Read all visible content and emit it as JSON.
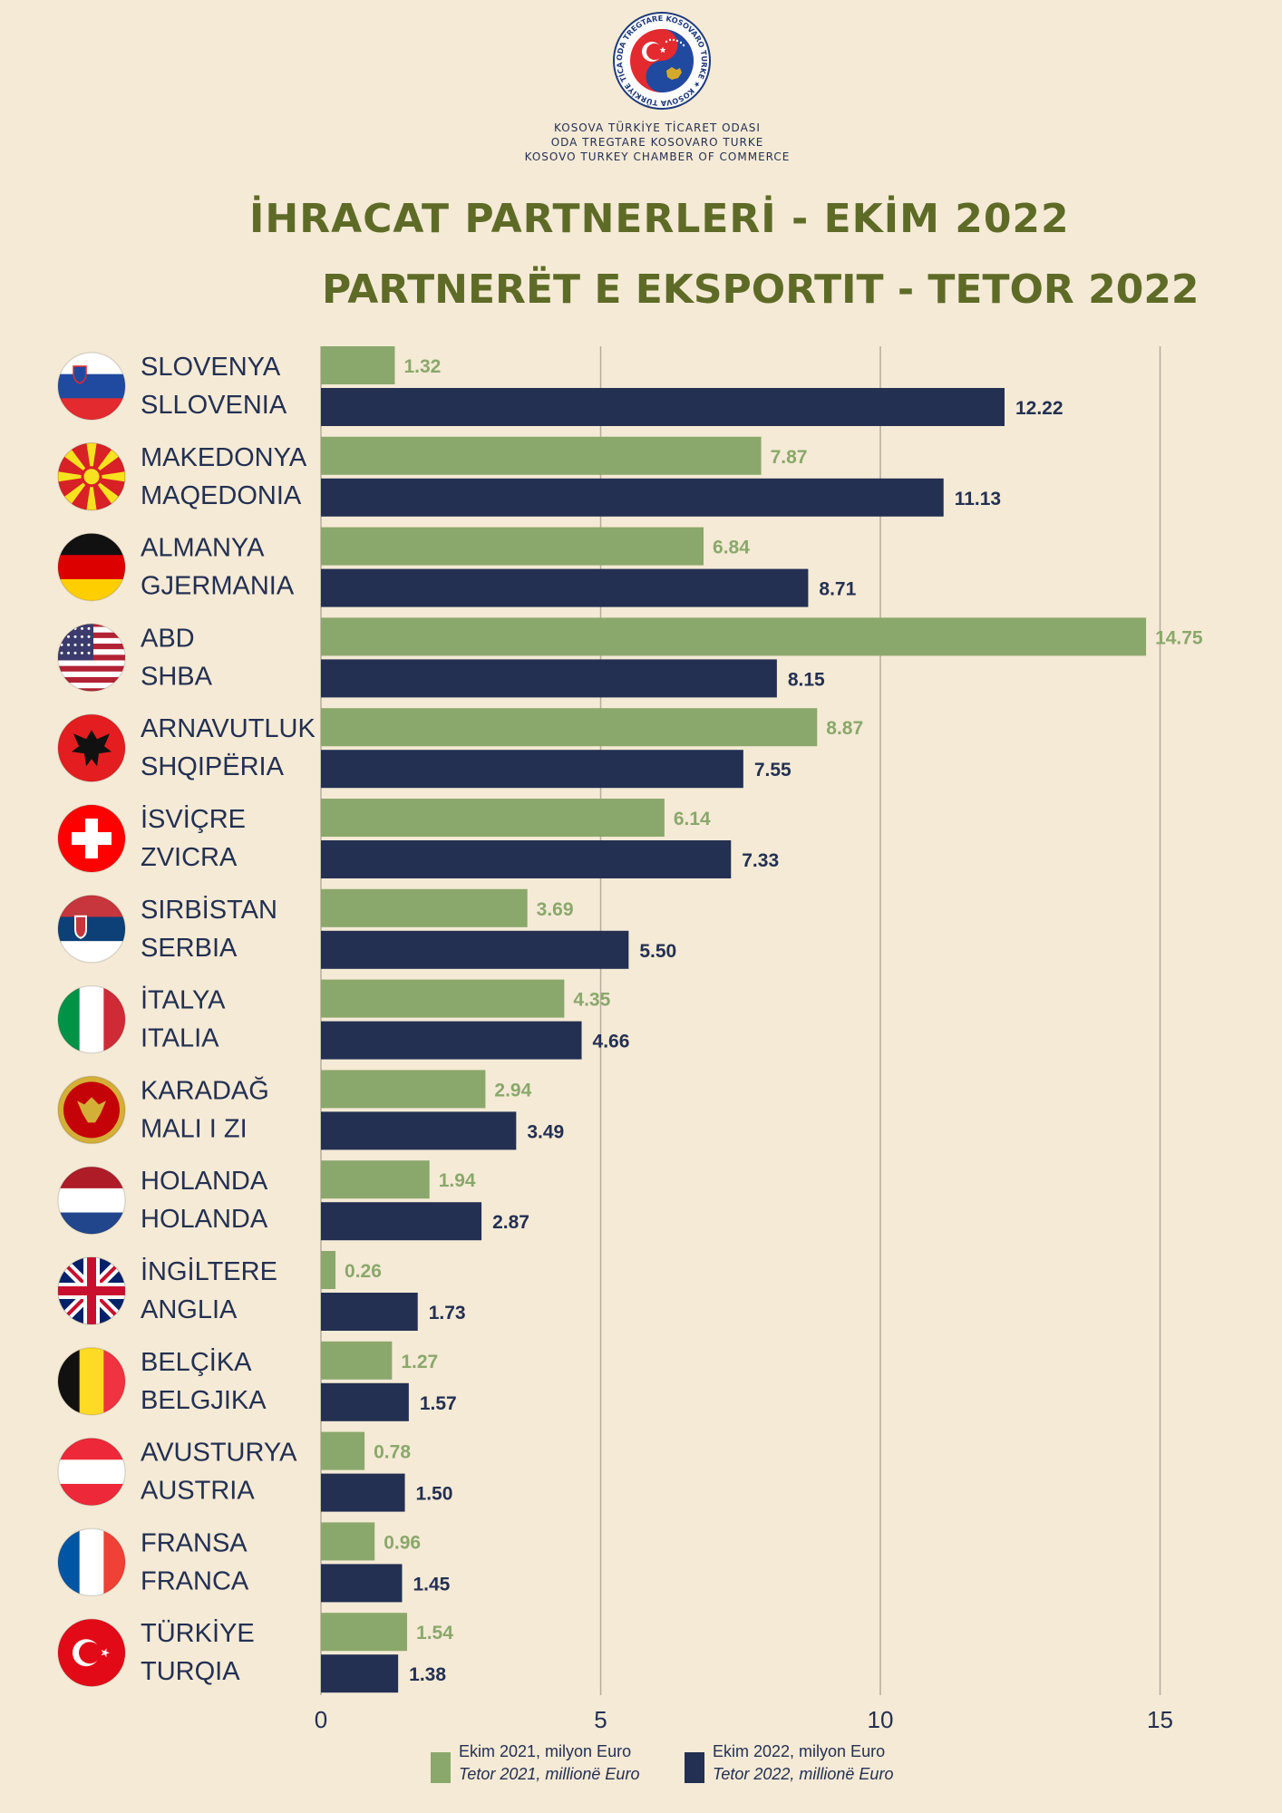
{
  "header": {
    "org_lines": [
      "KOSOVA TÜRKİYE TİCARET ODASI",
      "ODA TREGTARE KOSOVARO TURKE",
      "KOSOVO TURKEY CHAMBER OF COMMERCE"
    ],
    "logo_ring_text": "ODA TREGTARE KOSOVARO TURKE ★ KOSOVA TÜRKİYE TİCARET ODASI ★",
    "title_tr": "İHRACAT PARTNERLERİ - EKİM 2022",
    "title_sq": "PARTNERËT E EKSPORTIT - TETOR 2022"
  },
  "colors": {
    "background": "#f5ead6",
    "series_2021": "#8aa86b",
    "series_2022": "#233052",
    "title": "#5e6b27",
    "grid": "#b5ac9c"
  },
  "chart_data": {
    "type": "bar",
    "orientation": "horizontal",
    "categories": [
      {
        "tr": "SLOVENYA",
        "sq": "SLLOVENIA",
        "flag": "slovenia-flag-icon"
      },
      {
        "tr": "MAKEDONYA",
        "sq": "MAQEDONIA",
        "flag": "north-macedonia-flag-icon"
      },
      {
        "tr": "ALMANYA",
        "sq": "GJERMANIA",
        "flag": "germany-flag-icon"
      },
      {
        "tr": "ABD",
        "sq": "SHBA",
        "flag": "usa-flag-icon"
      },
      {
        "tr": "ARNAVUTLUK",
        "sq": "SHQIPËRIA",
        "flag": "albania-flag-icon"
      },
      {
        "tr": "İSVİÇRE",
        "sq": "ZVICRA",
        "flag": "switzerland-flag-icon"
      },
      {
        "tr": "SIRBİSTAN",
        "sq": "SERBIA",
        "flag": "serbia-flag-icon"
      },
      {
        "tr": "İTALYA",
        "sq": "ITALIA",
        "flag": "italy-flag-icon"
      },
      {
        "tr": "KARADAĞ",
        "sq": "MALI I ZI",
        "flag": "montenegro-flag-icon"
      },
      {
        "tr": "HOLANDA",
        "sq": "HOLANDA",
        "flag": "netherlands-flag-icon"
      },
      {
        "tr": "İNGİLTERE",
        "sq": "ANGLIA",
        "flag": "uk-flag-icon"
      },
      {
        "tr": "BELÇİKA",
        "sq": "BELGJIKA",
        "flag": "belgium-flag-icon"
      },
      {
        "tr": "AVUSTURYA",
        "sq": "AUSTRIA",
        "flag": "austria-flag-icon"
      },
      {
        "tr": "FRANSA",
        "sq": "FRANCA",
        "flag": "france-flag-icon"
      },
      {
        "tr": "TÜRKİYE",
        "sq": "TURQIA",
        "flag": "turkey-flag-icon"
      }
    ],
    "series": [
      {
        "key": "2021",
        "values": [
          1.32,
          7.87,
          6.84,
          14.75,
          8.87,
          6.14,
          3.69,
          4.35,
          2.94,
          1.94,
          0.26,
          1.27,
          0.78,
          0.96,
          1.54
        ],
        "labels": [
          "1.32",
          "7.87",
          "6.84",
          "14.75",
          "8.87",
          "6.14",
          "3.69",
          "4.35",
          "2.94",
          "1.94",
          "0.26",
          "1.27",
          "0.78",
          "0.96",
          "1.54"
        ]
      },
      {
        "key": "2022",
        "values": [
          12.22,
          11.13,
          8.71,
          8.15,
          7.55,
          7.33,
          5.5,
          4.66,
          3.49,
          2.87,
          1.73,
          1.57,
          1.5,
          1.45,
          1.38
        ],
        "labels": [
          "12.22",
          "11.13",
          "8.71",
          "8.15",
          "7.55",
          "7.33",
          "5.50",
          "4.66",
          "3.49",
          "2.87",
          "1.73",
          "1.57",
          "1.50",
          "1.45",
          "1.38"
        ]
      }
    ],
    "xlim": [
      0,
      15
    ],
    "xticks": [
      "0",
      "5",
      "10",
      "15"
    ],
    "grid": "vertical",
    "legend_position": "bottom",
    "legend": [
      {
        "line1": "Ekim 2021, milyon Euro",
        "line2": "Tetor 2021, millionë Euro"
      },
      {
        "line1": "Ekim 2022, milyon Euro",
        "line2": "Tetor 2022, millionë Euro"
      }
    ]
  }
}
